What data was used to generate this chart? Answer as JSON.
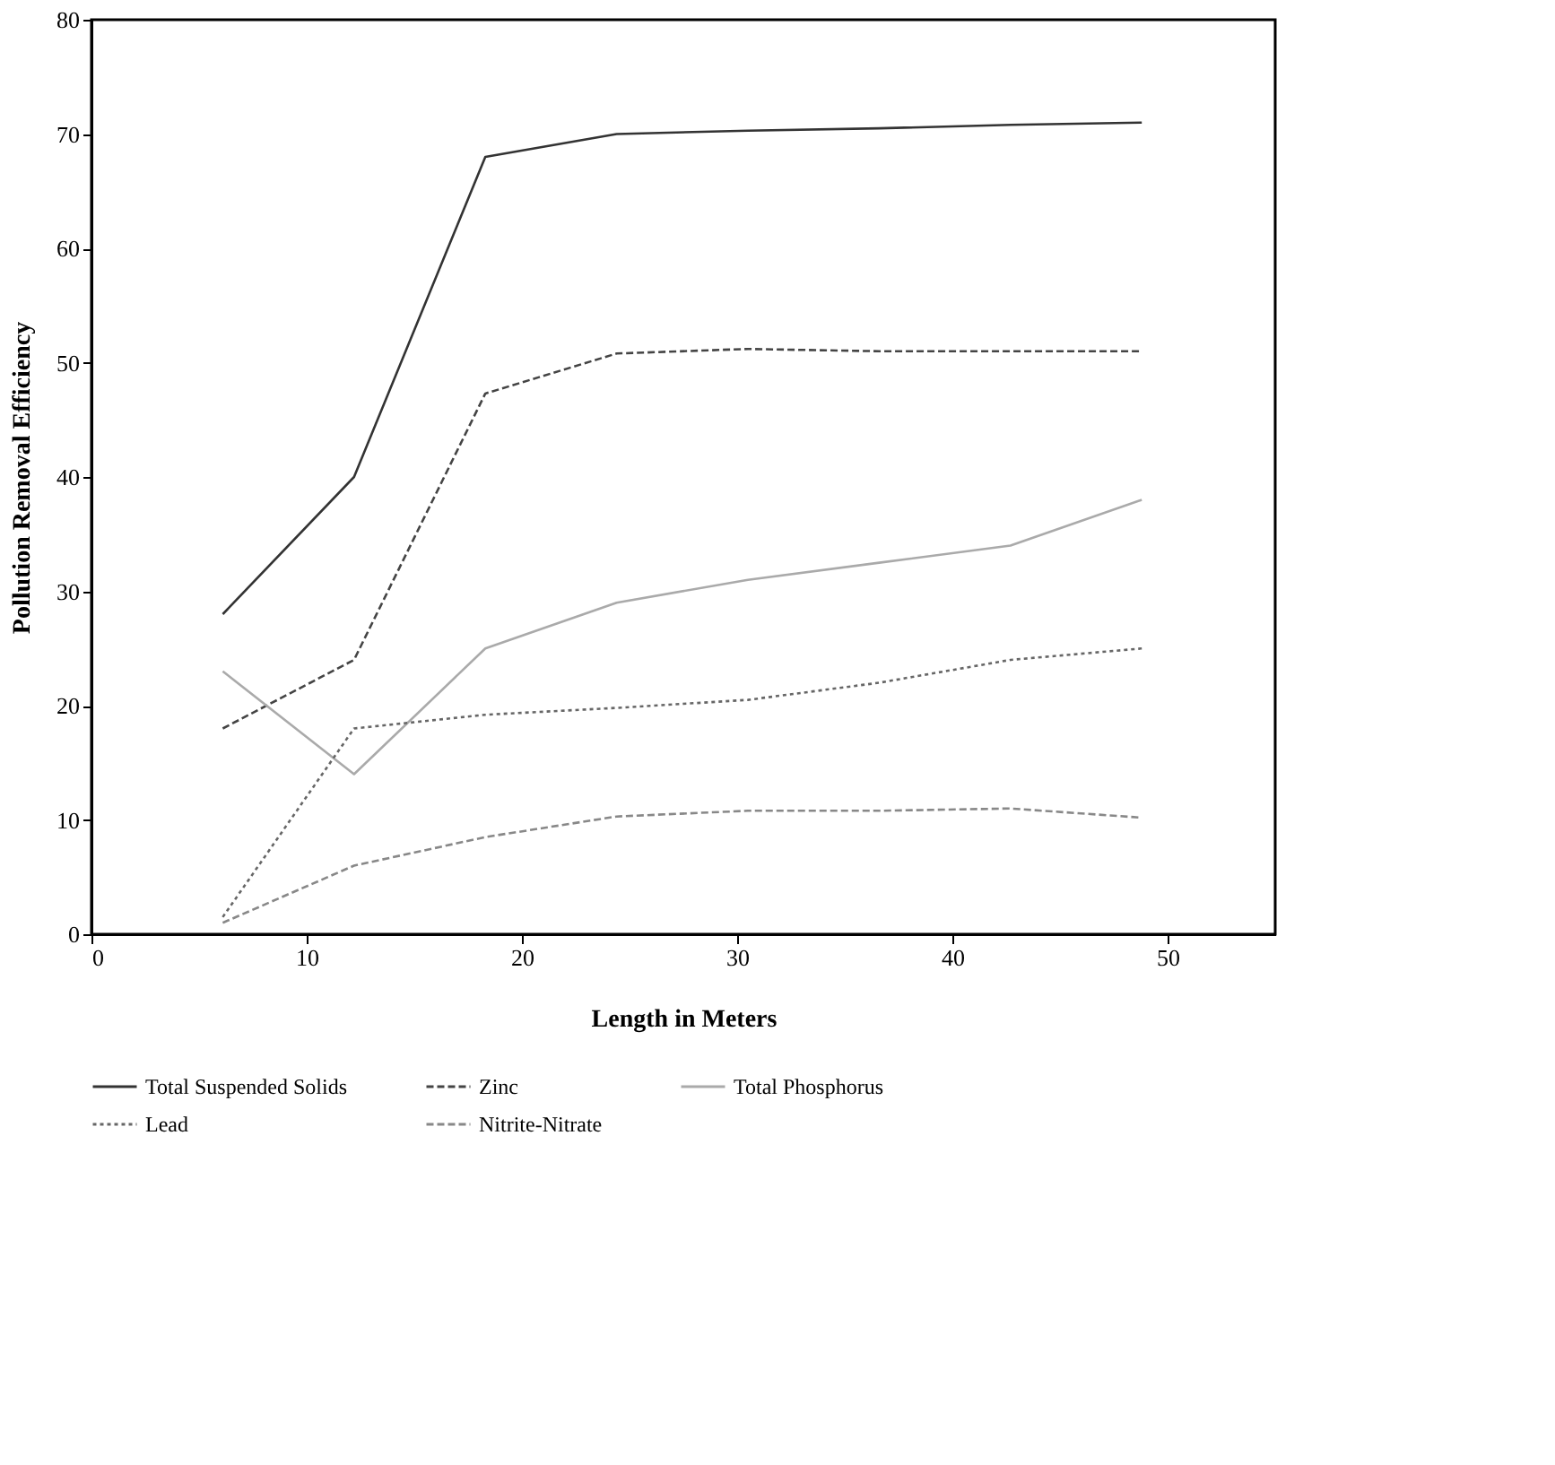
{
  "chart_data": {
    "type": "line",
    "xlabel": "Length in Meters",
    "ylabel": "Pollution Removal Efficiency",
    "x": [
      6.1,
      12.2,
      18.3,
      24.4,
      30.5,
      36.6,
      42.7,
      48.8
    ],
    "series": [
      {
        "name": "Total Suspended Solids",
        "color": "#333333",
        "line_style": "solid",
        "values": [
          28,
          40,
          68,
          70,
          70.3,
          70.5,
          70.8,
          71
        ]
      },
      {
        "name": "Zinc",
        "color": "#444444",
        "line_style": "dashed",
        "values": [
          18,
          24,
          47.3,
          50.8,
          51.2,
          51,
          51,
          51
        ]
      },
      {
        "name": "Total Phosphorus",
        "color": "#aaaaaa",
        "line_style": "solid",
        "values": [
          23,
          14,
          25,
          29,
          31,
          32.5,
          34,
          38
        ]
      },
      {
        "name": "Lead",
        "color": "#666666",
        "line_style": "dotted",
        "values": [
          1.5,
          18,
          19.2,
          19.8,
          20.5,
          22,
          24,
          25
        ]
      },
      {
        "name": "Nitrite-Nitrate",
        "color": "#888888",
        "line_style": "dashed",
        "values": [
          1,
          6,
          8.5,
          10.3,
          10.8,
          10.8,
          11,
          10.2
        ]
      }
    ],
    "xlim": [
      0,
      55
    ],
    "xticks": [
      0,
      10,
      20,
      30,
      40,
      50
    ],
    "ylim": [
      0,
      80
    ],
    "yticks": [
      0,
      10,
      20,
      30,
      40,
      50,
      60,
      70,
      80
    ],
    "grid": false,
    "legend": "bottom"
  }
}
